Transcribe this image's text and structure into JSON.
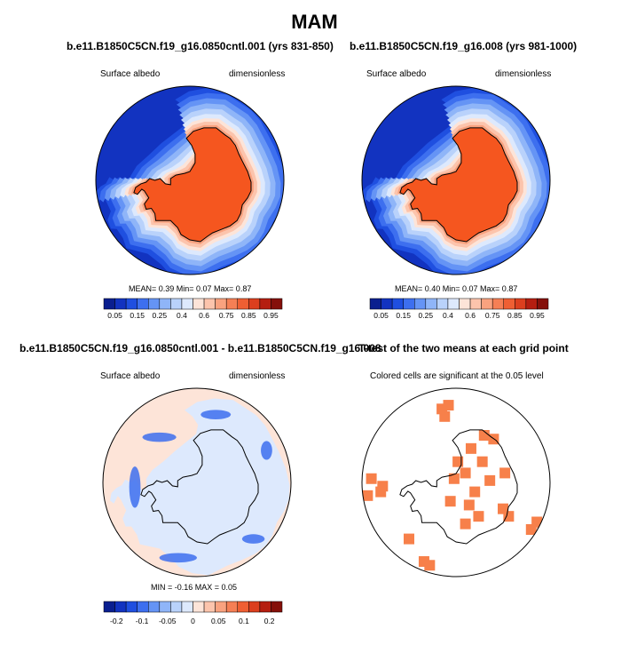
{
  "page": {
    "title": "MAM"
  },
  "panels": [
    {
      "id": "control",
      "title": "b.e11.B1850C5CN.f19_g16.0850cntl.001 (yrs 831-850)",
      "left_label": "Surface albedo",
      "right_label": "dimensionless",
      "stats": "MEAN=  0.39  Min=  0.07  Max=  0.87",
      "colorbar": {
        "colors": [
          "#0a1f8f",
          "#1233c0",
          "#1f4fe0",
          "#3d6fef",
          "#6594f5",
          "#8fb5f8",
          "#b9d2fb",
          "#dde9fd",
          "#fde4d8",
          "#fcc4ac",
          "#f9a27f",
          "#f57f55",
          "#ef5f33",
          "#dc3f1e",
          "#b51e10",
          "#85100a"
        ],
        "labels": [
          "0.05",
          "0.15",
          "0.25",
          "0.4",
          "0.6",
          "0.75",
          "0.85",
          "0.95"
        ]
      }
    },
    {
      "id": "test",
      "title": "b.e11.B1850C5CN.f19_g16.008 (yrs 981-1000)",
      "left_label": "Surface albedo",
      "right_label": "dimensionless",
      "stats": "MEAN=  0.40  Min=  0.07  Max=  0.87",
      "colorbar": {
        "colors": [
          "#0a1f8f",
          "#1233c0",
          "#1f4fe0",
          "#3d6fef",
          "#6594f5",
          "#8fb5f8",
          "#b9d2fb",
          "#dde9fd",
          "#fde4d8",
          "#fcc4ac",
          "#f9a27f",
          "#f57f55",
          "#ef5f33",
          "#dc3f1e",
          "#b51e10",
          "#85100a"
        ],
        "labels": [
          "0.05",
          "0.15",
          "0.25",
          "0.4",
          "0.6",
          "0.75",
          "0.85",
          "0.95"
        ]
      }
    },
    {
      "id": "difference",
      "title": "b.e11.B1850C5CN.f19_g16.0850cntl.001 - b.e11.B1850C5CN.f19_g16.008",
      "left_label": "Surface albedo",
      "right_label": "dimensionless",
      "stats": "MIN =  -0.16  MAX =  0.05",
      "colorbar": {
        "colors": [
          "#0a1f8f",
          "#1233c0",
          "#1f4fe0",
          "#3d6fef",
          "#6594f5",
          "#8fb5f8",
          "#b9d2fb",
          "#dde9fd",
          "#fde4d8",
          "#fcc4ac",
          "#f9a27f",
          "#f57f55",
          "#ef5f33",
          "#dc3f1e",
          "#b51e10",
          "#85100a"
        ],
        "labels": [
          "-0.2",
          "-0.1",
          "-0.05",
          "0",
          "0.05",
          "0.1",
          "0.2"
        ]
      }
    },
    {
      "id": "ttest",
      "title": "T-test of the two means at each grid point",
      "subtitle": "Colored cells are significant at the 0.05 level"
    }
  ],
  "chart_data": [
    {
      "type": "heatmap",
      "title": "b.e11.B1850C5CN.f19_g16.0850cntl.001 (yrs 831-850)",
      "projection": "south-polar-stereographic",
      "variable": "Surface albedo",
      "units": "dimensionless",
      "summary": {
        "mean": 0.39,
        "min": 0.07,
        "max": 0.87
      },
      "levels": [
        0.05,
        0.1,
        0.15,
        0.2,
        0.25,
        0.3,
        0.4,
        0.5,
        0.6,
        0.7,
        0.75,
        0.8,
        0.85,
        0.9,
        0.95
      ]
    },
    {
      "type": "heatmap",
      "title": "b.e11.B1850C5CN.f19_g16.008 (yrs 981-1000)",
      "projection": "south-polar-stereographic",
      "variable": "Surface albedo",
      "units": "dimensionless",
      "summary": {
        "mean": 0.4,
        "min": 0.07,
        "max": 0.87
      },
      "levels": [
        0.05,
        0.1,
        0.15,
        0.2,
        0.25,
        0.3,
        0.4,
        0.5,
        0.6,
        0.7,
        0.75,
        0.8,
        0.85,
        0.9,
        0.95
      ]
    },
    {
      "type": "heatmap",
      "title": "b.e11.B1850C5CN.f19_g16.0850cntl.001 - b.e11.B1850C5CN.f19_g16.008",
      "projection": "south-polar-stereographic",
      "variable": "Surface albedo",
      "units": "dimensionless",
      "summary": {
        "min": -0.16,
        "max": 0.05
      },
      "levels": [
        -0.2,
        -0.15,
        -0.1,
        -0.07,
        -0.05,
        -0.03,
        -0.01,
        0,
        0.01,
        0.03,
        0.05,
        0.07,
        0.1,
        0.15,
        0.2
      ]
    },
    {
      "type": "heatmap",
      "title": "T-test of the two means at each grid point",
      "subtitle": "Colored cells are significant at the 0.05 level",
      "projection": "south-polar-stereographic",
      "significance_level": 0.05,
      "significant_color": "#f7804a"
    }
  ]
}
